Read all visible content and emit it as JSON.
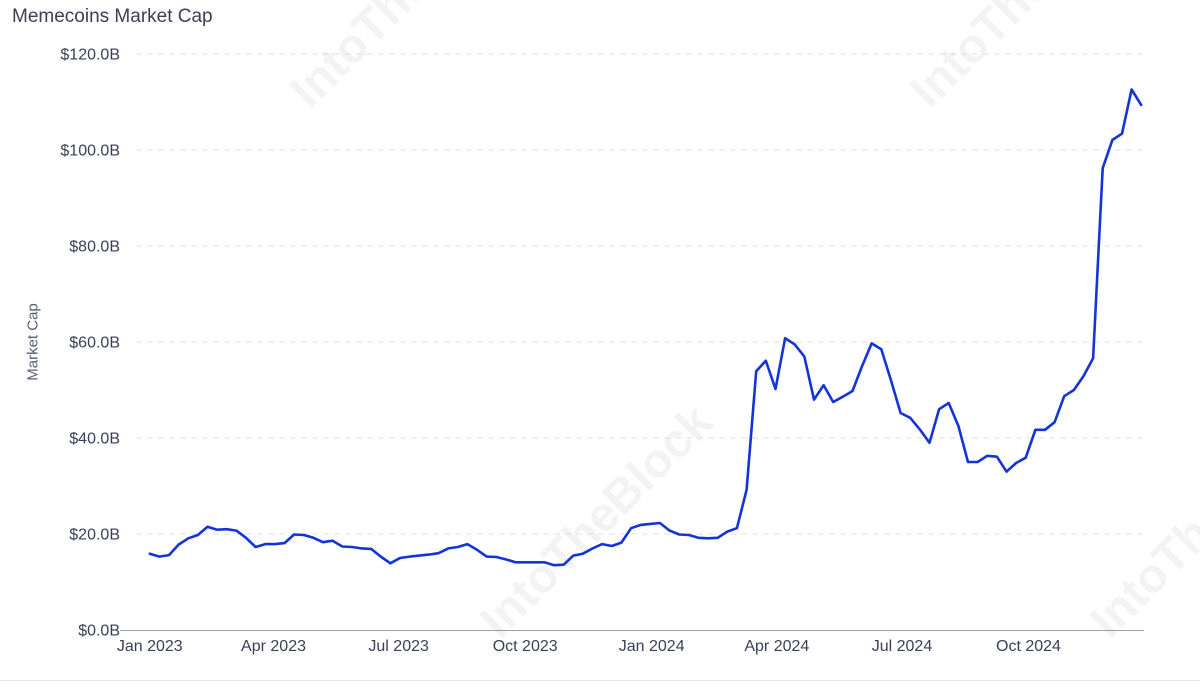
{
  "chart_data": {
    "type": "line",
    "title": "Memecoins Market Cap",
    "xlabel": "",
    "ylabel": "Market Cap",
    "ylim": [
      0,
      120
    ],
    "y_ticks": [
      0,
      20,
      40,
      60,
      80,
      100,
      120
    ],
    "y_tick_labels": [
      "$0.0B",
      "$20.0B",
      "$40.0B",
      "$60.0B",
      "$80.0B",
      "$100.0B",
      "$120.0B"
    ],
    "x_ticks": [
      "2023-01-01",
      "2023-04-01",
      "2023-07-01",
      "2023-10-01",
      "2024-01-01",
      "2024-04-01",
      "2024-07-01",
      "2024-10-01"
    ],
    "x_tick_labels": [
      "Jan 2023",
      "Apr 2023",
      "Jul 2023",
      "Oct 2023",
      "Jan 2024",
      "Apr 2024",
      "Jul 2024",
      "Oct 2024"
    ],
    "xlim": [
      "2022-12-22",
      "2024-12-24"
    ],
    "grid": "horizontal-dashed",
    "legend": "none",
    "series": [
      {
        "name": "",
        "color": "#1435d6",
        "points": [
          [
            "2023-01-01",
            15.9
          ],
          [
            "2023-01-08",
            15.3
          ],
          [
            "2023-01-15",
            15.6
          ],
          [
            "2023-01-22",
            17.8
          ],
          [
            "2023-01-29",
            19.1
          ],
          [
            "2023-02-05",
            19.8
          ],
          [
            "2023-02-12",
            21.5
          ],
          [
            "2023-02-19",
            20.9
          ],
          [
            "2023-02-26",
            21.0
          ],
          [
            "2023-03-05",
            20.7
          ],
          [
            "2023-03-12",
            19.2
          ],
          [
            "2023-03-19",
            17.3
          ],
          [
            "2023-03-26",
            17.9
          ],
          [
            "2023-04-02",
            17.9
          ],
          [
            "2023-04-09",
            18.1
          ],
          [
            "2023-04-16",
            19.9
          ],
          [
            "2023-04-23",
            19.8
          ],
          [
            "2023-04-30",
            19.2
          ],
          [
            "2023-05-07",
            18.3
          ],
          [
            "2023-05-14",
            18.6
          ],
          [
            "2023-05-21",
            17.4
          ],
          [
            "2023-05-28",
            17.3
          ],
          [
            "2023-06-04",
            17.0
          ],
          [
            "2023-06-11",
            16.9
          ],
          [
            "2023-06-18",
            15.3
          ],
          [
            "2023-06-25",
            13.9
          ],
          [
            "2023-07-02",
            15.0
          ],
          [
            "2023-07-09",
            15.3
          ],
          [
            "2023-07-16",
            15.5
          ],
          [
            "2023-07-23",
            15.7
          ],
          [
            "2023-07-30",
            16.0
          ],
          [
            "2023-08-06",
            17.0
          ],
          [
            "2023-08-13",
            17.3
          ],
          [
            "2023-08-20",
            17.9
          ],
          [
            "2023-08-27",
            16.7
          ],
          [
            "2023-09-03",
            15.3
          ],
          [
            "2023-09-10",
            15.2
          ],
          [
            "2023-09-17",
            14.7
          ],
          [
            "2023-09-24",
            14.1
          ],
          [
            "2023-10-01",
            14.1
          ],
          [
            "2023-10-08",
            14.1
          ],
          [
            "2023-10-15",
            14.1
          ],
          [
            "2023-10-22",
            13.5
          ],
          [
            "2023-10-29",
            13.6
          ],
          [
            "2023-11-05",
            15.5
          ],
          [
            "2023-11-12",
            15.9
          ],
          [
            "2023-11-19",
            17.0
          ],
          [
            "2023-11-26",
            17.9
          ],
          [
            "2023-12-03",
            17.5
          ],
          [
            "2023-12-10",
            18.2
          ],
          [
            "2023-12-17",
            21.2
          ],
          [
            "2023-12-24",
            21.9
          ],
          [
            "2023-12-31",
            22.1
          ],
          [
            "2024-01-07",
            22.3
          ],
          [
            "2024-01-14",
            20.7
          ],
          [
            "2024-01-21",
            19.9
          ],
          [
            "2024-01-28",
            19.8
          ],
          [
            "2024-02-04",
            19.2
          ],
          [
            "2024-02-11",
            19.1
          ],
          [
            "2024-02-18",
            19.2
          ],
          [
            "2024-02-25",
            20.5
          ],
          [
            "2024-03-03",
            21.2
          ],
          [
            "2024-03-10",
            29.2
          ],
          [
            "2024-03-17",
            53.9
          ],
          [
            "2024-03-24",
            56.1
          ],
          [
            "2024-03-31",
            50.2
          ],
          [
            "2024-04-07",
            60.8
          ],
          [
            "2024-04-14",
            59.5
          ],
          [
            "2024-04-21",
            57.0
          ],
          [
            "2024-04-28",
            48.0
          ],
          [
            "2024-05-05",
            51.0
          ],
          [
            "2024-05-12",
            47.5
          ],
          [
            "2024-05-19",
            48.6
          ],
          [
            "2024-05-26",
            49.8
          ],
          [
            "2024-06-02",
            55.0
          ],
          [
            "2024-06-09",
            59.7
          ],
          [
            "2024-06-16",
            58.5
          ],
          [
            "2024-06-23",
            52.0
          ],
          [
            "2024-06-30",
            45.2
          ],
          [
            "2024-07-07",
            44.2
          ],
          [
            "2024-07-14",
            41.8
          ],
          [
            "2024-07-21",
            39.0
          ],
          [
            "2024-07-28",
            46.0
          ],
          [
            "2024-08-04",
            47.3
          ],
          [
            "2024-08-11",
            42.5
          ],
          [
            "2024-08-18",
            35.0
          ],
          [
            "2024-08-25",
            35.0
          ],
          [
            "2024-09-01",
            36.3
          ],
          [
            "2024-09-08",
            36.1
          ],
          [
            "2024-09-15",
            33.0
          ],
          [
            "2024-09-22",
            34.8
          ],
          [
            "2024-09-29",
            35.9
          ],
          [
            "2024-10-06",
            41.7
          ],
          [
            "2024-10-13",
            41.7
          ],
          [
            "2024-10-20",
            43.3
          ],
          [
            "2024-10-27",
            48.7
          ],
          [
            "2024-11-03",
            50.0
          ],
          [
            "2024-11-10",
            52.9
          ],
          [
            "2024-11-17",
            56.6
          ],
          [
            "2024-11-24",
            96.2
          ],
          [
            "2024-12-01",
            102.1
          ],
          [
            "2024-12-08",
            103.4
          ],
          [
            "2024-12-15",
            112.6
          ],
          [
            "2024-12-22",
            109.4
          ]
        ]
      }
    ],
    "watermark": "IntoTheBlock"
  }
}
